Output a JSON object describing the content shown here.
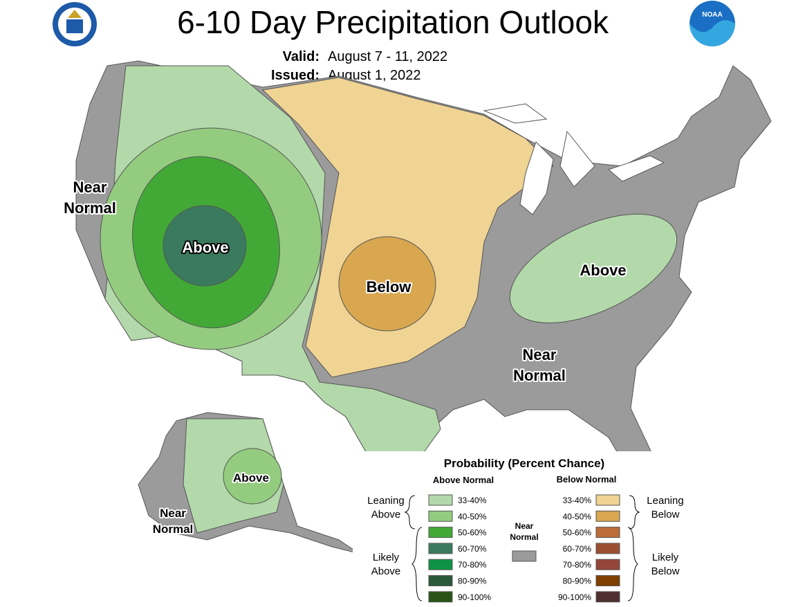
{
  "header": {
    "title": "6-10 Day Precipitation Outlook",
    "valid_label": "Valid:",
    "valid": "August 7 - 11, 2022",
    "issued_label": "Issued:",
    "issued": "August 1, 2022"
  },
  "logos": {
    "noaa": "NOAA"
  },
  "map_labels": [
    {
      "lines": [
        "Near",
        "Normal"
      ]
    },
    {
      "lines": [
        "Above"
      ]
    },
    {
      "lines": [
        "Below"
      ]
    },
    {
      "lines": [
        "Above"
      ]
    },
    {
      "lines": [
        "Near",
        "Normal"
      ]
    },
    {
      "lines": [
        "Above"
      ]
    },
    {
      "lines": [
        "Near",
        "Normal"
      ]
    }
  ],
  "legend": {
    "title": "Probability (Percent Chance)",
    "above_header": "Above Normal",
    "below_header": "Below Normal",
    "above": [
      {
        "label": "33-40%",
        "color": "#b3d9aa"
      },
      {
        "label": "40-50%",
        "color": "#94cc7f"
      },
      {
        "label": "50-60%",
        "color": "#42a937"
      },
      {
        "label": "60-70%",
        "color": "#3a7a5e"
      },
      {
        "label": "70-80%",
        "color": "#0e9444"
      },
      {
        "label": "80-90%",
        "color": "#2b5a3b"
      },
      {
        "label": "90-100%",
        "color": "#285517"
      }
    ],
    "below": [
      {
        "label": "33-40%",
        "color": "#f0d493"
      },
      {
        "label": "40-50%",
        "color": "#d8a750"
      },
      {
        "label": "50-60%",
        "color": "#bb6c38"
      },
      {
        "label": "60-70%",
        "color": "#9b5031"
      },
      {
        "label": "70-80%",
        "color": "#934639"
      },
      {
        "label": "80-90%",
        "color": "#804000"
      },
      {
        "label": "90-100%",
        "color": "#4f2f2f"
      }
    ],
    "near": {
      "lines": [
        "Near",
        "Normal"
      ],
      "color": "#9b9b9b"
    },
    "leaning_above": [
      "Leaning",
      "Above"
    ],
    "likely_above": [
      "Likely",
      "Above"
    ],
    "leaning_below": [
      "Leaning",
      "Below"
    ],
    "likely_below": [
      "Likely",
      "Below"
    ]
  }
}
